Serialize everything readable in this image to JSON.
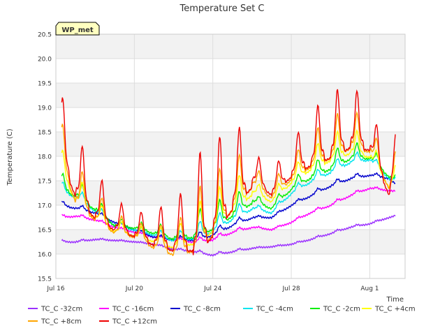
{
  "chart_data": {
    "type": "line",
    "title": "Temperature Set C",
    "xlabel": "Time",
    "ylabel": "Temperature (C)",
    "xlim": [
      0,
      17.8
    ],
    "ylim": [
      15.5,
      20.5
    ],
    "yticks": [
      "15.5",
      "16.0",
      "16.5",
      "17.0",
      "17.5",
      "18.0",
      "18.5",
      "19.0",
      "19.5",
      "20.0",
      "20.5"
    ],
    "xticks": [
      {
        "label": "Jul 16",
        "value": 0
      },
      {
        "label": "Jul 20",
        "value": 4
      },
      {
        "label": "Jul 24",
        "value": 8
      },
      {
        "label": "Jul 28",
        "value": 12
      },
      {
        "label": "Aug 1",
        "value": 16
      }
    ],
    "grid": true,
    "banded_background": true,
    "legend_position": "bottom",
    "annotation": {
      "text": "WP_met",
      "bg": "#ffffc0",
      "color": "#8b0000"
    },
    "series": [
      {
        "name": "TC_C -32cm",
        "color": "#9b30ff",
        "x": [
          0.3,
          1,
          2,
          3,
          4,
          5,
          6,
          7,
          8,
          9,
          10,
          11,
          12,
          13,
          14,
          15,
          16,
          17,
          17.3
        ],
        "y": [
          16.25,
          16.25,
          16.3,
          16.28,
          16.25,
          16.2,
          16.1,
          16.05,
          15.98,
          16.05,
          16.12,
          16.15,
          16.2,
          16.3,
          16.42,
          16.55,
          16.62,
          16.75,
          16.78
        ]
      },
      {
        "name": "TC_C -16cm",
        "color": "#ff00ff",
        "x": [
          0.3,
          1,
          2,
          3,
          4,
          5,
          6,
          7,
          8,
          9,
          10,
          11,
          12,
          13,
          14,
          15,
          16,
          17,
          17.3
        ],
        "y": [
          16.75,
          16.78,
          16.7,
          16.55,
          16.45,
          16.35,
          16.3,
          16.25,
          16.3,
          16.45,
          16.55,
          16.5,
          16.65,
          16.85,
          17.0,
          17.2,
          17.35,
          17.3,
          17.28
        ]
      },
      {
        "name": "TC_C -8cm",
        "color": "#0000cd",
        "x": [
          0.3,
          1,
          2,
          3,
          4,
          5,
          6,
          7,
          8,
          9,
          10,
          11,
          12,
          13,
          14,
          15,
          16,
          17,
          17.3
        ],
        "y": [
          17.0,
          16.95,
          16.85,
          16.65,
          16.5,
          16.35,
          16.3,
          16.3,
          16.4,
          16.6,
          16.75,
          16.75,
          17.0,
          17.2,
          17.4,
          17.55,
          17.62,
          17.55,
          17.42
        ]
      },
      {
        "name": "TC_C -4cm",
        "color": "#00e5ee",
        "x": [
          0.3,
          1,
          2,
          3,
          4,
          5,
          6,
          7,
          8,
          9,
          10,
          11,
          12,
          13,
          14,
          15,
          16,
          17,
          17.3
        ],
        "y": [
          17.3,
          17.2,
          16.9,
          16.6,
          16.5,
          16.4,
          16.3,
          16.35,
          16.5,
          16.75,
          16.95,
          16.85,
          17.25,
          17.5,
          17.7,
          17.9,
          17.95,
          17.55,
          17.5
        ]
      },
      {
        "name": "TC_C -2cm",
        "color": "#00ee00",
        "x": [
          0.3,
          1,
          2,
          3,
          4,
          5,
          6,
          7,
          8,
          9,
          10,
          11,
          12,
          13,
          14,
          15,
          16,
          17,
          17.3
        ],
        "y": [
          17.35,
          17.25,
          16.95,
          16.6,
          16.55,
          16.45,
          16.35,
          16.4,
          16.6,
          16.85,
          17.1,
          16.95,
          17.35,
          17.6,
          17.8,
          18.0,
          18.0,
          17.6,
          17.5
        ]
      },
      {
        "name": "TC_C +4cm",
        "color": "#ffff00",
        "x": [
          0.3,
          1,
          2,
          3,
          4,
          5,
          6,
          7,
          8,
          9,
          10,
          11,
          12,
          13,
          14,
          15,
          16,
          17,
          17.3
        ],
        "y": [
          17.7,
          17.2,
          16.8,
          16.5,
          16.4,
          16.3,
          16.2,
          16.3,
          16.6,
          17.0,
          17.3,
          17.1,
          17.5,
          17.8,
          18.0,
          18.15,
          18.05,
          17.4,
          17.65
        ]
      },
      {
        "name": "TC_C +8cm",
        "color": "#ffa500",
        "x": [
          0.3,
          1,
          2,
          3,
          4,
          5,
          6,
          7,
          8,
          9,
          10,
          11,
          12,
          13,
          14,
          15,
          16,
          17,
          17.3
        ],
        "y": [
          18.0,
          17.2,
          16.8,
          16.5,
          16.4,
          16.2,
          16.1,
          16.2,
          16.6,
          17.1,
          17.5,
          17.2,
          17.6,
          17.9,
          18.1,
          18.3,
          18.2,
          17.4,
          17.85
        ]
      },
      {
        "name": "TC_C +12cm",
        "color": "#ee0000",
        "x": [
          0.3,
          1,
          2,
          3,
          4,
          5,
          6,
          7,
          8,
          9,
          10,
          11,
          12,
          13,
          14,
          15,
          16,
          17,
          17.3
        ],
        "y": [
          18.15,
          17.4,
          16.9,
          16.6,
          16.45,
          16.3,
          16.25,
          16.3,
          16.7,
          17.2,
          17.6,
          17.3,
          17.7,
          18.0,
          18.2,
          18.4,
          18.3,
          17.3,
          18.05
        ]
      }
    ]
  }
}
